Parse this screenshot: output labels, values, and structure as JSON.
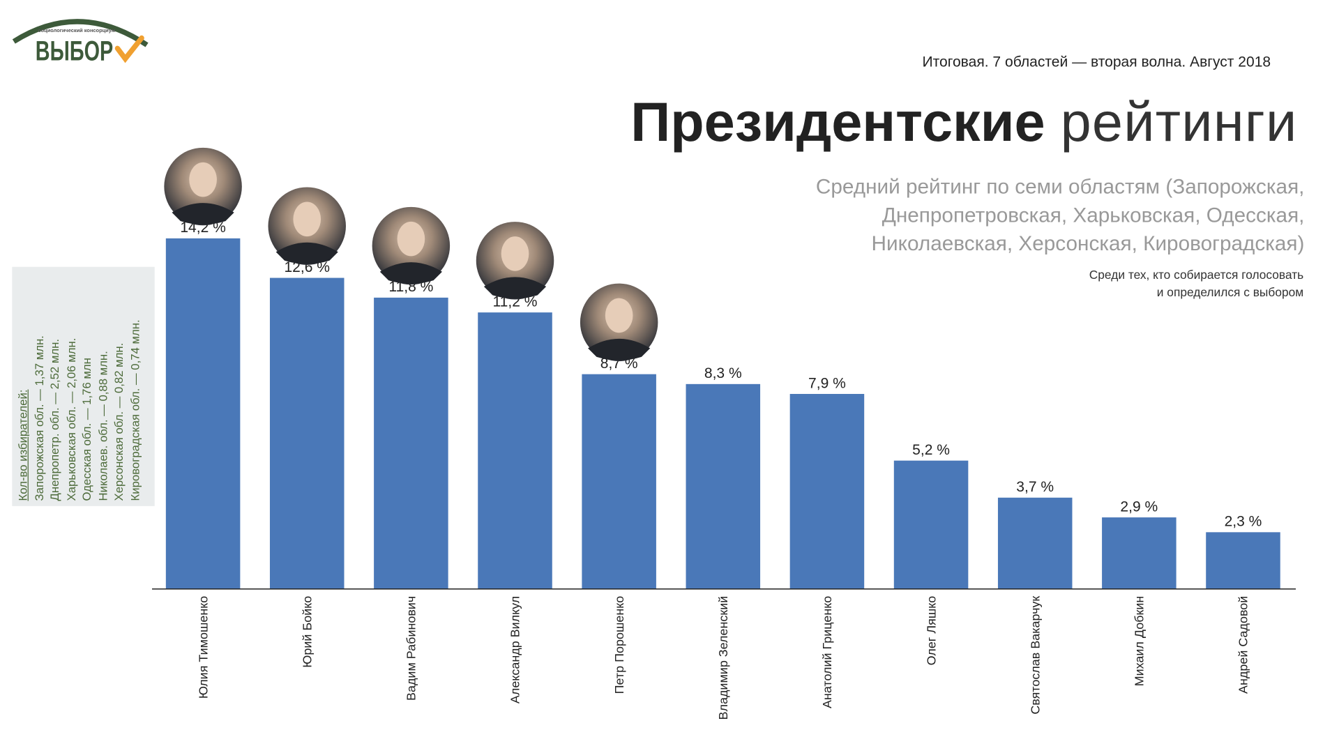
{
  "logo": {
    "small_text": "социологический консорциум",
    "main_text": "ВЫБОР"
  },
  "header": {
    "subtitle": "Итоговая. 7 областей — вторая волна. Август 2018",
    "title_bold": "Президентские",
    "title_light": "рейтинги",
    "description": [
      "Средний рейтинг по семи областям (Запорожская,",
      "Днепропетровская, Харьковская, Одесская,",
      "Николаевская, Херсонская, Кировоградская)"
    ],
    "note": [
      "Среди тех, кто собирается голосовать",
      "и определился с выбором"
    ]
  },
  "voters_panel": {
    "heading": "Кол-во избирателей:",
    "items": [
      "Запорожская обл. — 1,37 млн.",
      "Днепропетр. обл. — 2,52 млн.",
      "Харьковская обл. — 2,06 млн.",
      "Одесская обл. — 1,76 млн",
      "Николаев. обл. — 0,88 млн.",
      "Херсонская обл. — 0,82 млн.",
      "Кировоградская обл. — 0,74 млн."
    ]
  },
  "chart_data": {
    "type": "bar",
    "categories": [
      "Юлия Тимошенко",
      "Юрий Бойко",
      "Вадим Рабинович",
      "Александр Вилкул",
      "Петр Порошенко",
      "Владимир Зеленский",
      "Анатолий Гриценко",
      "Олег Ляшко",
      "Святослав Вакарчук",
      "Михаил Добкин",
      "Андрей Садовой"
    ],
    "values": [
      14.2,
      12.6,
      11.8,
      11.2,
      8.7,
      8.3,
      7.9,
      5.2,
      3.7,
      2.9,
      2.3
    ],
    "data_labels": [
      "14,2 %",
      "12,6 %",
      "11,8 %",
      "11,2 %",
      "8,7 %",
      "8,3 %",
      "7,9 %",
      "5,2 %",
      "3,7 %",
      "2,9 %",
      "2,3 %"
    ],
    "photos_shown": [
      true,
      true,
      true,
      true,
      true,
      false,
      false,
      false,
      false,
      false,
      false
    ],
    "bar_color": "#4a78b8",
    "ylim": [
      0,
      14.2
    ],
    "grid": false,
    "legend": "none"
  },
  "colors": {
    "logo_green": "#3d5a3a",
    "logo_check": "#f0a030",
    "panel_bg": "#e9eced"
  }
}
